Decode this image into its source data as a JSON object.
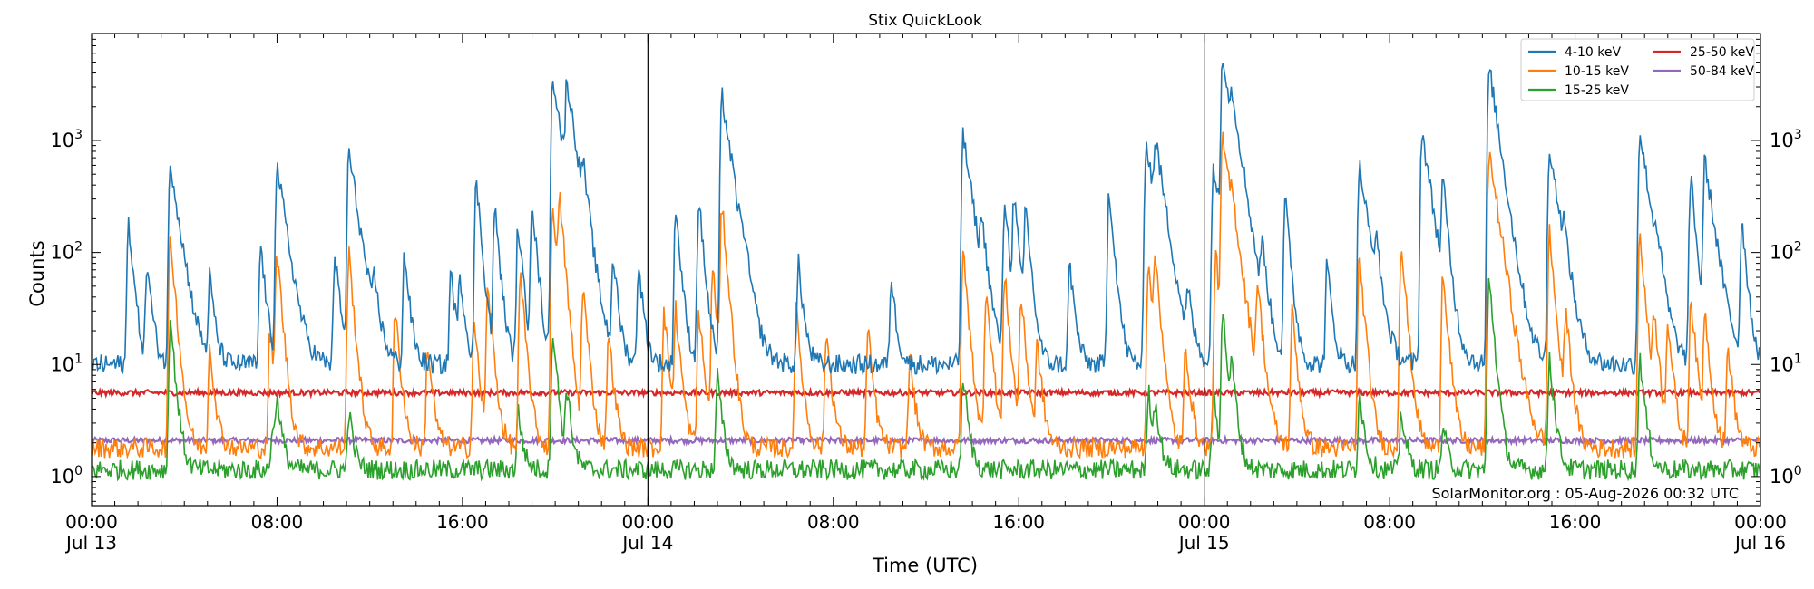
{
  "chart_data": {
    "type": "line",
    "title": "Stix QuickLook",
    "xlabel": "Time (UTC)",
    "ylabel": "Counts",
    "yscale": "log",
    "ylim": [
      0.55,
      9000
    ],
    "xlim_hours": [
      0,
      72
    ],
    "x_ticks": [
      {
        "hour": 0,
        "time": "00:00",
        "date": "Jul 13"
      },
      {
        "hour": 8,
        "time": "08:00",
        "date": ""
      },
      {
        "hour": 16,
        "time": "16:00",
        "date": ""
      },
      {
        "hour": 24,
        "time": "00:00",
        "date": "Jul 14"
      },
      {
        "hour": 32,
        "time": "08:00",
        "date": ""
      },
      {
        "hour": 40,
        "time": "16:00",
        "date": ""
      },
      {
        "hour": 48,
        "time": "00:00",
        "date": "Jul 15"
      },
      {
        "hour": 56,
        "time": "08:00",
        "date": ""
      },
      {
        "hour": 64,
        "time": "16:00",
        "date": ""
      },
      {
        "hour": 72,
        "time": "00:00",
        "date": "Jul 16"
      }
    ],
    "y_ticks": [
      {
        "value": 1,
        "base": "10",
        "exp": "0"
      },
      {
        "value": 10,
        "base": "10",
        "exp": "1"
      },
      {
        "value": 100,
        "base": "10",
        "exp": "2"
      },
      {
        "value": 1000,
        "base": "10",
        "exp": "3"
      }
    ],
    "day_lines_hours": [
      24,
      48
    ],
    "legend_position": "top-right",
    "annotation": "SolarMonitor.org : 05-Aug-2026 00:32 UTC",
    "grid": false,
    "series": [
      {
        "name": "4-10 keV",
        "color": "#1f77b4",
        "baseline": 10,
        "peaks": [
          [
            1.6,
            190
          ],
          [
            2.4,
            80
          ],
          [
            3.4,
            650
          ],
          [
            5.1,
            60
          ],
          [
            7.3,
            120
          ],
          [
            8.0,
            600
          ],
          [
            10.5,
            100
          ],
          [
            11.1,
            800
          ],
          [
            12.2,
            45
          ],
          [
            13.5,
            100
          ],
          [
            15.5,
            70
          ],
          [
            15.9,
            60
          ],
          [
            16.6,
            450
          ],
          [
            17.4,
            250
          ],
          [
            18.4,
            180
          ],
          [
            19.0,
            300
          ],
          [
            19.9,
            3800
          ],
          [
            20.5,
            3000
          ],
          [
            21.2,
            350
          ],
          [
            22.5,
            90
          ],
          [
            23.6,
            80
          ],
          [
            25.2,
            250
          ],
          [
            26.2,
            300
          ],
          [
            27.2,
            2500
          ],
          [
            28.1,
            60
          ],
          [
            30.5,
            80
          ],
          [
            34.5,
            60
          ],
          [
            37.6,
            1100
          ],
          [
            38.4,
            150
          ],
          [
            39.4,
            300
          ],
          [
            39.8,
            300
          ],
          [
            40.3,
            250
          ],
          [
            42.2,
            80
          ],
          [
            43.9,
            380
          ],
          [
            45.5,
            1000
          ],
          [
            45.9,
            800
          ],
          [
            47.3,
            40
          ],
          [
            48.4,
            600
          ],
          [
            48.8,
            6000
          ],
          [
            49.2,
            1200
          ],
          [
            50.5,
            100
          ],
          [
            51.5,
            300
          ],
          [
            53.3,
            80
          ],
          [
            54.7,
            600
          ],
          [
            55.4,
            100
          ],
          [
            57.4,
            1200
          ],
          [
            58.3,
            400
          ],
          [
            60.3,
            4500
          ],
          [
            62.9,
            900
          ],
          [
            63.5,
            100
          ],
          [
            66.8,
            1200
          ],
          [
            67.5,
            80
          ],
          [
            69.0,
            500
          ],
          [
            69.6,
            650
          ],
          [
            71.2,
            200
          ]
        ]
      },
      {
        "name": "10-15 keV",
        "color": "#ff7f0e",
        "baseline": 1.8,
        "peaks": [
          [
            3.4,
            140
          ],
          [
            5.1,
            15
          ],
          [
            7.7,
            20
          ],
          [
            8.0,
            100
          ],
          [
            11.1,
            100
          ],
          [
            13.1,
            30
          ],
          [
            14.5,
            15
          ],
          [
            16.5,
            25
          ],
          [
            17.1,
            50
          ],
          [
            18.5,
            60
          ],
          [
            19.9,
            280
          ],
          [
            20.2,
            260
          ],
          [
            21.2,
            50
          ],
          [
            22.3,
            20
          ],
          [
            24.7,
            30
          ],
          [
            25.2,
            30
          ],
          [
            26.2,
            30
          ],
          [
            26.8,
            70
          ],
          [
            27.2,
            260
          ],
          [
            30.4,
            30
          ],
          [
            31.7,
            20
          ],
          [
            33.5,
            20
          ],
          [
            35.3,
            12
          ],
          [
            37.6,
            100
          ],
          [
            38.6,
            50
          ],
          [
            39.4,
            60
          ],
          [
            40.1,
            40
          ],
          [
            40.8,
            15
          ],
          [
            45.6,
            90
          ],
          [
            45.9,
            80
          ],
          [
            47.2,
            15
          ],
          [
            48.5,
            100
          ],
          [
            48.8,
            1000
          ],
          [
            49.2,
            120
          ],
          [
            50.3,
            50
          ],
          [
            51.8,
            30
          ],
          [
            54.7,
            90
          ],
          [
            56.5,
            120
          ],
          [
            58.3,
            70
          ],
          [
            60.3,
            800
          ],
          [
            62.9,
            150
          ],
          [
            63.6,
            30
          ],
          [
            66.8,
            150
          ],
          [
            67.4,
            30
          ],
          [
            68.0,
            25
          ],
          [
            69.0,
            40
          ],
          [
            69.6,
            30
          ],
          [
            70.6,
            15
          ]
        ]
      },
      {
        "name": "15-25 keV",
        "color": "#2ca02c",
        "baseline": 1.15,
        "peaks": [
          [
            3.4,
            25
          ],
          [
            7.8,
            3
          ],
          [
            8.0,
            5
          ],
          [
            11.1,
            4
          ],
          [
            18.4,
            4
          ],
          [
            19.9,
            20
          ],
          [
            20.5,
            6
          ],
          [
            27.0,
            8
          ],
          [
            37.6,
            8
          ],
          [
            45.6,
            6
          ],
          [
            45.9,
            4
          ],
          [
            48.4,
            6
          ],
          [
            48.8,
            30
          ],
          [
            49.2,
            8
          ],
          [
            54.7,
            6
          ],
          [
            56.5,
            4
          ],
          [
            58.3,
            3
          ],
          [
            60.3,
            60
          ],
          [
            62.9,
            12
          ],
          [
            66.8,
            12
          ]
        ]
      },
      {
        "name": "25-50 keV",
        "color": "#d62728",
        "baseline": 5.6,
        "peaks": []
      },
      {
        "name": "50-84 keV",
        "color": "#9467bd",
        "baseline": 2.1,
        "peaks": []
      }
    ]
  }
}
